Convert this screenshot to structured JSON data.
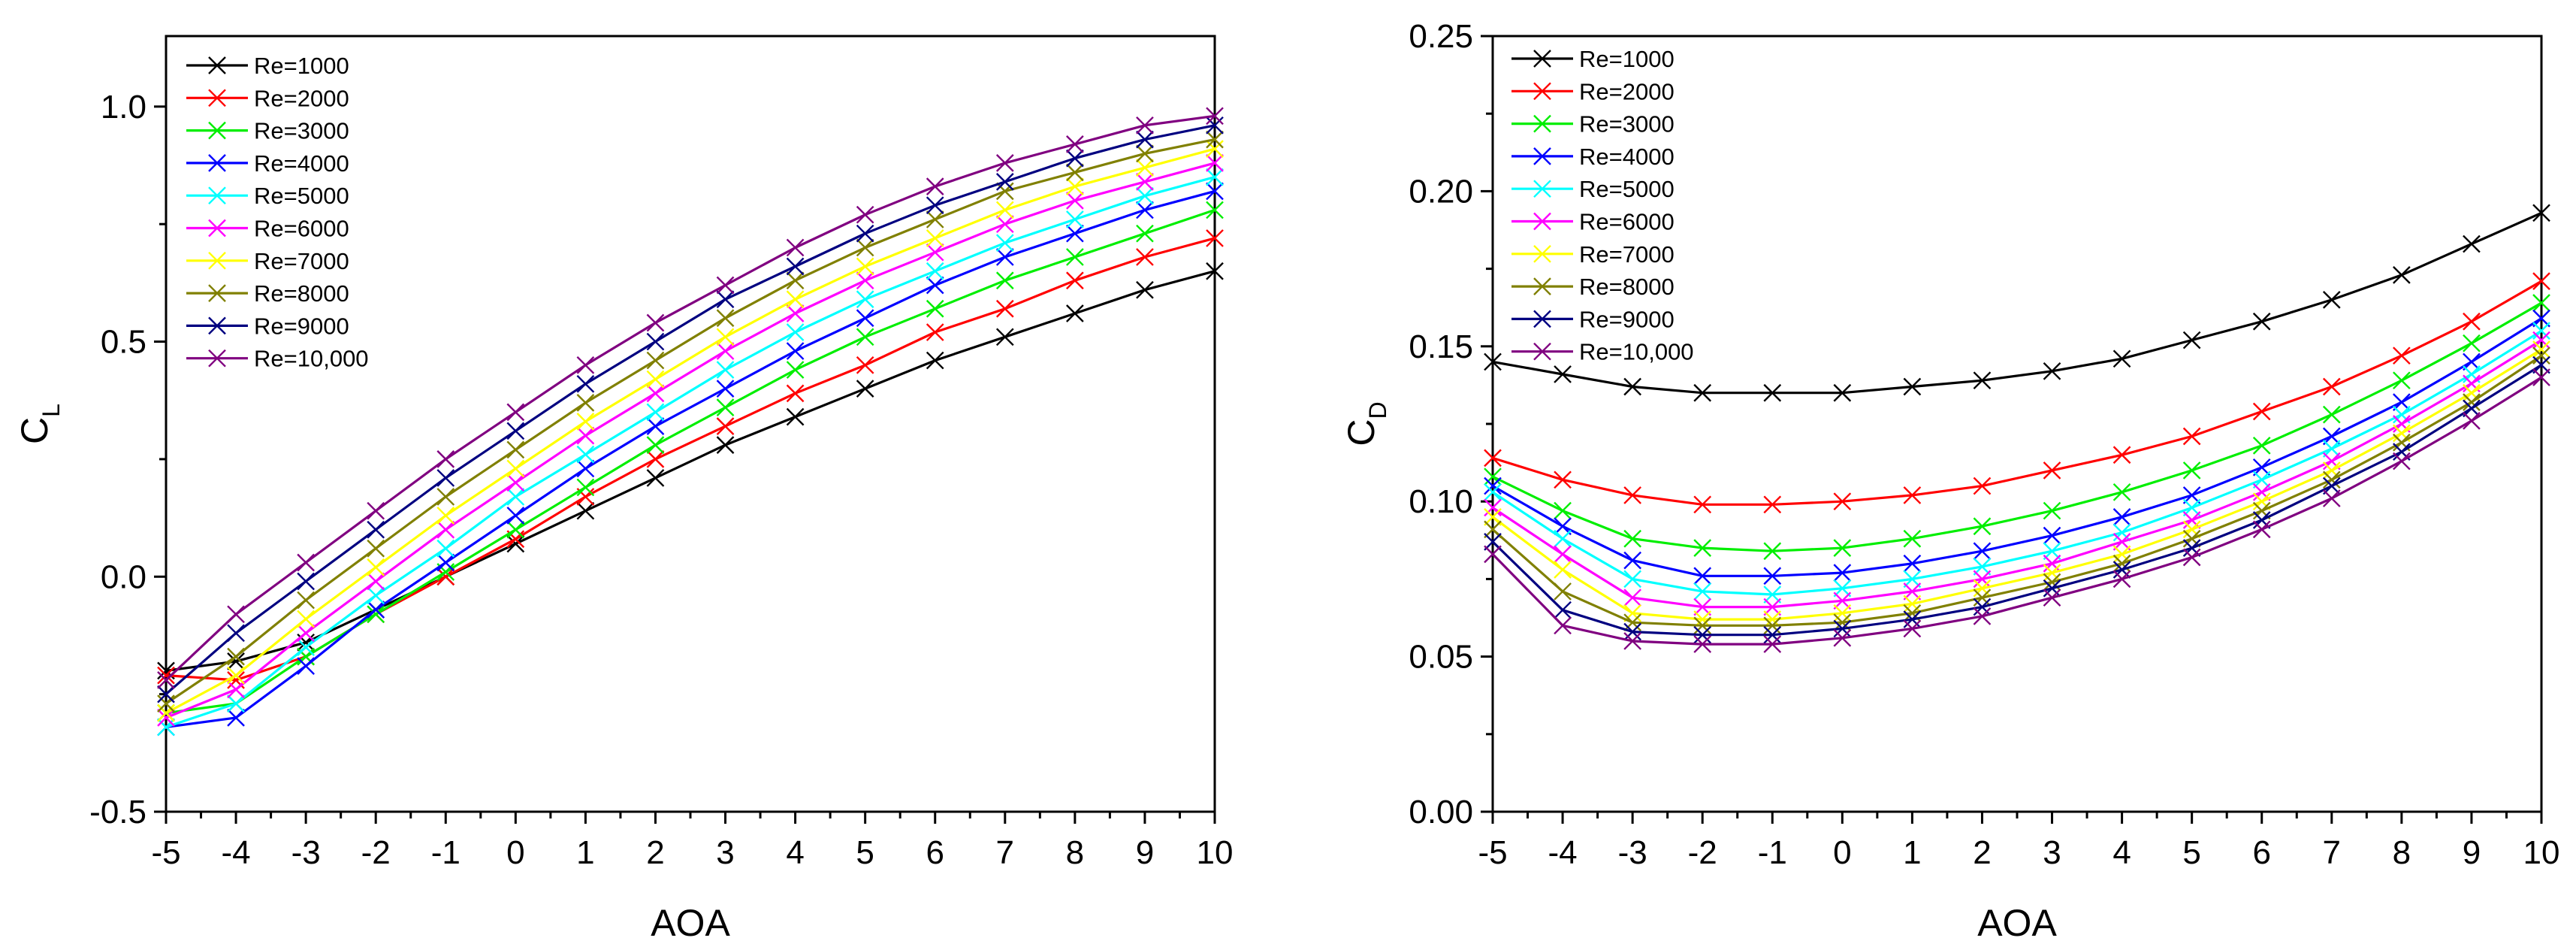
{
  "chart_data": [
    {
      "type": "line",
      "id": "cl",
      "xlabel": "AOA",
      "ylabel": "C",
      "ylabel_sub": "L",
      "xlim": [
        -5,
        10
      ],
      "ylim": [
        -0.5,
        1.15
      ],
      "xticks": [
        -5,
        -4,
        -3,
        -2,
        -1,
        0,
        1,
        2,
        3,
        4,
        5,
        6,
        7,
        8,
        9,
        10
      ],
      "xtick_labels": [
        "-5",
        "-4",
        "-3",
        "-2",
        "-1",
        "0",
        "1",
        "2",
        "3",
        "4",
        "5",
        "6",
        "7",
        "8",
        "9",
        "10"
      ],
      "yticks": [
        -0.5,
        0,
        0.5,
        1
      ],
      "ytick_labels": [
        "-0.5",
        "0.0",
        "0.5",
        "1.0"
      ],
      "legend_position": "top-left",
      "marker": "x",
      "grid": false,
      "x": [
        -5,
        -4,
        -3,
        -2,
        -1,
        0,
        1,
        2,
        3,
        4,
        5,
        6,
        7,
        8,
        9,
        10
      ],
      "series": [
        {
          "name": "Re=1000",
          "color": "#000000",
          "values": [
            -0.2,
            -0.18,
            -0.14,
            -0.07,
            0.0,
            0.07,
            0.14,
            0.21,
            0.28,
            0.34,
            0.4,
            0.46,
            0.51,
            0.56,
            0.61,
            0.65
          ]
        },
        {
          "name": "Re=2000",
          "color": "#ff0000",
          "values": [
            -0.21,
            -0.22,
            -0.17,
            -0.08,
            0.0,
            0.08,
            0.17,
            0.25,
            0.32,
            0.39,
            0.45,
            0.52,
            0.57,
            0.63,
            0.68,
            0.72
          ]
        },
        {
          "name": "Re=3000",
          "color": "#00ee00",
          "values": [
            -0.29,
            -0.27,
            -0.17,
            -0.08,
            0.01,
            0.1,
            0.19,
            0.28,
            0.36,
            0.44,
            0.51,
            0.57,
            0.63,
            0.68,
            0.73,
            0.78
          ]
        },
        {
          "name": "Re=4000",
          "color": "#0000ff",
          "values": [
            -0.32,
            -0.3,
            -0.19,
            -0.07,
            0.03,
            0.13,
            0.23,
            0.32,
            0.4,
            0.48,
            0.55,
            0.62,
            0.68,
            0.73,
            0.78,
            0.82
          ]
        },
        {
          "name": "Re=5000",
          "color": "#00ffff",
          "values": [
            -0.32,
            -0.27,
            -0.15,
            -0.04,
            0.06,
            0.17,
            0.26,
            0.35,
            0.44,
            0.52,
            0.59,
            0.65,
            0.71,
            0.76,
            0.81,
            0.85
          ]
        },
        {
          "name": "Re=6000",
          "color": "#ff00ff",
          "values": [
            -0.3,
            -0.24,
            -0.12,
            -0.01,
            0.1,
            0.2,
            0.3,
            0.39,
            0.48,
            0.56,
            0.63,
            0.69,
            0.75,
            0.8,
            0.84,
            0.88
          ]
        },
        {
          "name": "Re=7000",
          "color": "#ffff00",
          "values": [
            -0.29,
            -0.21,
            -0.09,
            0.02,
            0.13,
            0.23,
            0.33,
            0.42,
            0.51,
            0.59,
            0.66,
            0.72,
            0.78,
            0.83,
            0.87,
            0.91
          ]
        },
        {
          "name": "Re=8000",
          "color": "#808000",
          "values": [
            -0.27,
            -0.17,
            -0.05,
            0.06,
            0.17,
            0.27,
            0.37,
            0.46,
            0.55,
            0.63,
            0.7,
            0.76,
            0.82,
            0.86,
            0.9,
            0.93
          ]
        },
        {
          "name": "Re=9000",
          "color": "#000080",
          "values": [
            -0.25,
            -0.12,
            -0.01,
            0.1,
            0.21,
            0.31,
            0.41,
            0.5,
            0.59,
            0.66,
            0.73,
            0.79,
            0.84,
            0.89,
            0.93,
            0.96
          ]
        },
        {
          "name": "Re=10,000",
          "color": "#800080",
          "values": [
            -0.22,
            -0.08,
            0.03,
            0.14,
            0.25,
            0.35,
            0.45,
            0.54,
            0.62,
            0.7,
            0.77,
            0.83,
            0.88,
            0.92,
            0.96,
            0.98
          ]
        }
      ]
    },
    {
      "type": "line",
      "id": "cd",
      "xlabel": "AOA",
      "ylabel": "C",
      "ylabel_sub": "D",
      "xlim": [
        -5,
        10
      ],
      "ylim": [
        0,
        0.25
      ],
      "xticks": [
        -5,
        -4,
        -3,
        -2,
        -1,
        0,
        1,
        2,
        3,
        4,
        5,
        6,
        7,
        8,
        9,
        10
      ],
      "xtick_labels": [
        "-5",
        "-4",
        "-3",
        "-2",
        "-1",
        "0",
        "1",
        "2",
        "3",
        "4",
        "5",
        "6",
        "7",
        "8",
        "9",
        "10"
      ],
      "yticks": [
        0,
        0.05,
        0.1,
        0.15,
        0.2,
        0.25
      ],
      "ytick_labels": [
        "0.00",
        "0.05",
        "0.10",
        "0.15",
        "0.20",
        "0.25"
      ],
      "legend_position": "top-left",
      "marker": "x",
      "grid": false,
      "x": [
        -5,
        -4,
        -3,
        -2,
        -1,
        0,
        1,
        2,
        3,
        4,
        5,
        6,
        7,
        8,
        9,
        10
      ],
      "series": [
        {
          "name": "Re=1000",
          "color": "#000000",
          "values": [
            0.145,
            0.141,
            0.137,
            0.135,
            0.135,
            0.135,
            0.137,
            0.139,
            0.142,
            0.146,
            0.152,
            0.158,
            0.165,
            0.173,
            0.183,
            0.193
          ]
        },
        {
          "name": "Re=2000",
          "color": "#ff0000",
          "values": [
            0.114,
            0.107,
            0.102,
            0.099,
            0.099,
            0.1,
            0.102,
            0.105,
            0.11,
            0.115,
            0.121,
            0.129,
            0.137,
            0.147,
            0.158,
            0.171
          ]
        },
        {
          "name": "Re=3000",
          "color": "#00ee00",
          "values": [
            0.108,
            0.097,
            0.088,
            0.085,
            0.084,
            0.085,
            0.088,
            0.092,
            0.097,
            0.103,
            0.11,
            0.118,
            0.128,
            0.139,
            0.151,
            0.164
          ]
        },
        {
          "name": "Re=4000",
          "color": "#0000ff",
          "values": [
            0.105,
            0.092,
            0.081,
            0.076,
            0.076,
            0.077,
            0.08,
            0.084,
            0.089,
            0.095,
            0.102,
            0.111,
            0.121,
            0.132,
            0.145,
            0.159
          ]
        },
        {
          "name": "Re=5000",
          "color": "#00ffff",
          "values": [
            0.103,
            0.088,
            0.075,
            0.071,
            0.07,
            0.072,
            0.075,
            0.079,
            0.084,
            0.09,
            0.098,
            0.107,
            0.117,
            0.128,
            0.141,
            0.155
          ]
        },
        {
          "name": "Re=6000",
          "color": "#ff00ff",
          "values": [
            0.098,
            0.083,
            0.069,
            0.066,
            0.066,
            0.068,
            0.071,
            0.075,
            0.08,
            0.087,
            0.094,
            0.103,
            0.113,
            0.125,
            0.138,
            0.152
          ]
        },
        {
          "name": "Re=7000",
          "color": "#ffff00",
          "values": [
            0.095,
            0.078,
            0.064,
            0.062,
            0.062,
            0.064,
            0.067,
            0.072,
            0.077,
            0.083,
            0.091,
            0.1,
            0.11,
            0.122,
            0.135,
            0.149
          ]
        },
        {
          "name": "Re=8000",
          "color": "#808000",
          "values": [
            0.091,
            0.071,
            0.061,
            0.06,
            0.06,
            0.061,
            0.064,
            0.069,
            0.074,
            0.08,
            0.088,
            0.097,
            0.107,
            0.119,
            0.132,
            0.147
          ]
        },
        {
          "name": "Re=9000",
          "color": "#000080",
          "values": [
            0.087,
            0.065,
            0.058,
            0.057,
            0.057,
            0.059,
            0.062,
            0.066,
            0.072,
            0.078,
            0.085,
            0.094,
            0.105,
            0.116,
            0.13,
            0.144
          ]
        },
        {
          "name": "Re=10,000",
          "color": "#800080",
          "values": [
            0.083,
            0.06,
            0.055,
            0.054,
            0.054,
            0.056,
            0.059,
            0.063,
            0.069,
            0.075,
            0.082,
            0.091,
            0.101,
            0.113,
            0.126,
            0.14
          ]
        }
      ]
    }
  ]
}
